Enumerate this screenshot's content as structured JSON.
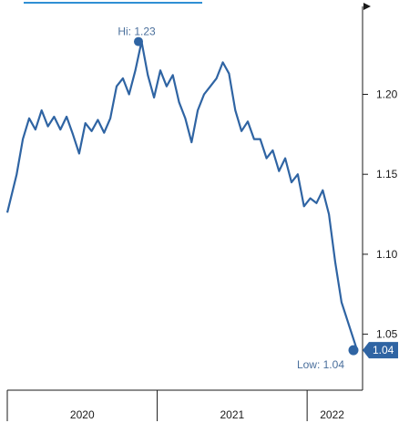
{
  "chart_data": {
    "type": "line",
    "title": "",
    "xlabel": "",
    "ylabel": "",
    "x_start": "2020-01",
    "x_end": "2022-04",
    "ylim": [
      1.015,
      1.255
    ],
    "y_ticks": [
      "1.05",
      "1.10",
      "1.15",
      "1.20"
    ],
    "x_period_labels": [
      "2020",
      "2021",
      "2022"
    ],
    "grid": false,
    "series": [
      {
        "name": "",
        "color": "#2f64a3",
        "x": [
          "2020-01",
          "2020-01",
          "2020-02",
          "2020-02",
          "2020-03",
          "2020-03",
          "2020-04",
          "2020-04",
          "2020-05",
          "2020-05",
          "2020-06",
          "2020-06",
          "2020-07",
          "2020-07",
          "2020-08",
          "2020-08",
          "2020-09",
          "2020-09",
          "2020-10",
          "2020-10",
          "2020-11",
          "2020-11",
          "2020-12",
          "2020-12",
          "2021-01",
          "2021-01",
          "2021-02",
          "2021-02",
          "2021-03",
          "2021-03",
          "2021-04",
          "2021-04",
          "2021-05",
          "2021-05",
          "2021-06",
          "2021-06",
          "2021-07",
          "2021-07",
          "2021-08",
          "2021-08",
          "2021-09",
          "2021-09",
          "2021-10",
          "2021-10",
          "2021-11",
          "2021-11",
          "2021-12",
          "2021-12",
          "2022-01",
          "2022-01",
          "2022-02",
          "2022-02",
          "2022-03",
          "2022-03",
          "2022-04"
        ],
        "values": [
          1.126,
          1.15,
          1.172,
          1.185,
          1.178,
          1.19,
          1.18,
          1.186,
          1.178,
          1.186,
          1.175,
          1.163,
          1.182,
          1.177,
          1.184,
          1.176,
          1.185,
          1.205,
          1.21,
          1.2,
          1.215,
          1.233,
          1.212,
          1.198,
          1.215,
          1.205,
          1.212,
          1.195,
          1.185,
          1.17,
          1.19,
          1.2,
          1.205,
          1.21,
          1.22,
          1.213,
          1.19,
          1.177,
          1.183,
          1.172,
          1.172,
          1.16,
          1.165,
          1.152,
          1.16,
          1.145,
          1.15,
          1.13,
          1.135,
          1.132,
          1.14,
          1.125,
          1.095,
          1.07,
          1.04
        ]
      }
    ],
    "annotations": {
      "high_label": "Hi: 1.23",
      "high_x": "2020-11",
      "high_value": 1.233,
      "low_label": "Low: 1.04",
      "low_x": "2022-04",
      "low_value": 1.04,
      "last_value_label": "1.04"
    }
  }
}
